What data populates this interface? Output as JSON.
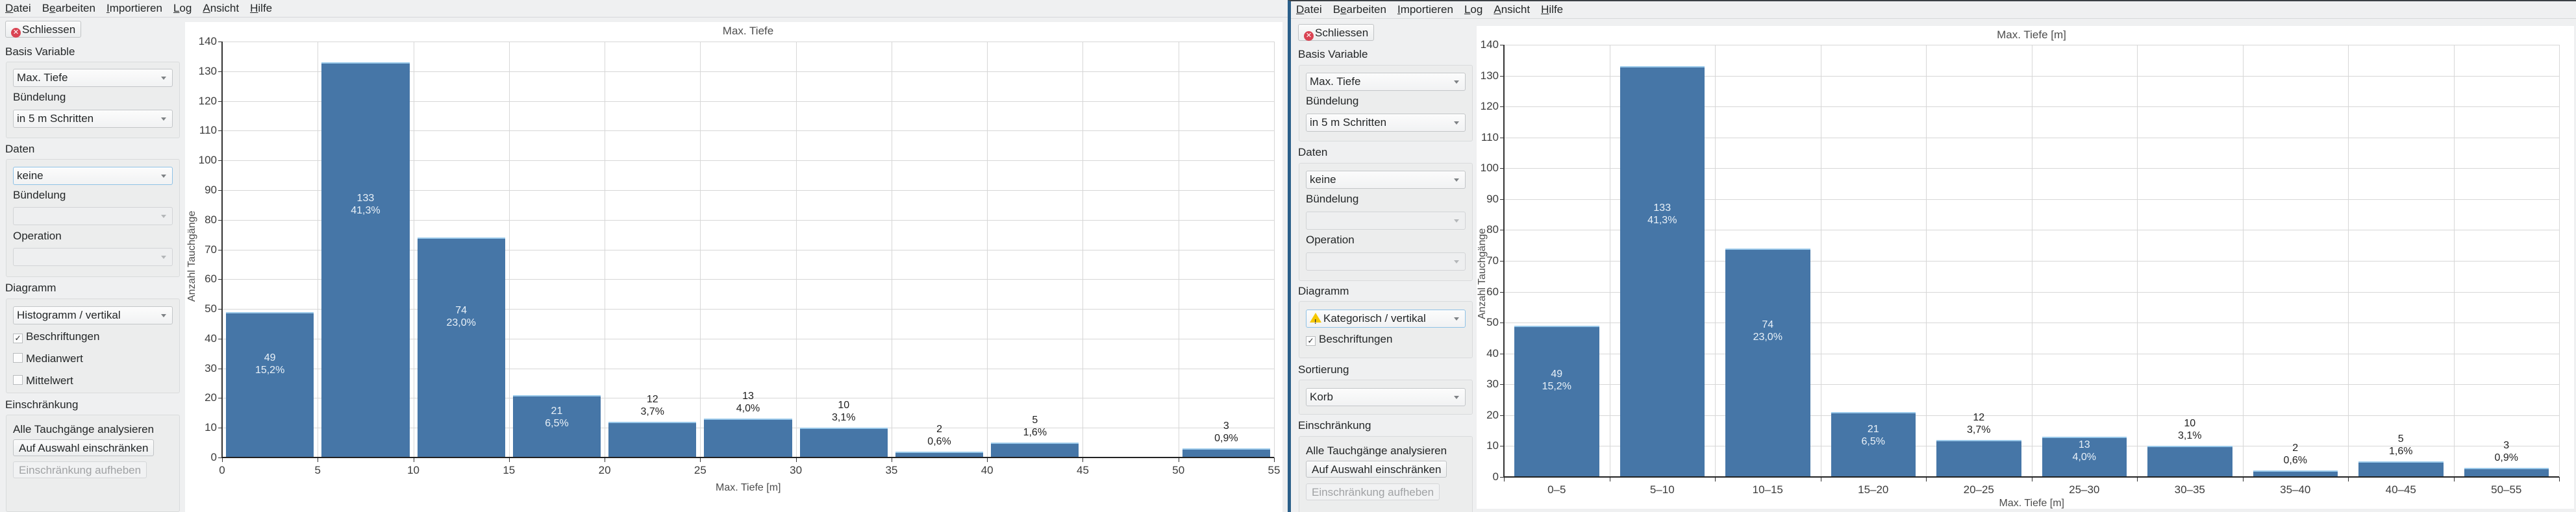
{
  "menu": [
    {
      "label": "Datei",
      "mnemonic": "D"
    },
    {
      "label": "Bearbeiten",
      "mnemonic": "e"
    },
    {
      "label": "Importieren",
      "mnemonic": "I"
    },
    {
      "label": "Log",
      "mnemonic": "L"
    },
    {
      "label": "Ansicht",
      "mnemonic": "A"
    },
    {
      "label": "Hilfe",
      "mnemonic": "H"
    }
  ],
  "left_window": {
    "close_button": "Schliessen",
    "basis": {
      "section": "Basis Variable",
      "variable": "Max. Tiefe",
      "binning_label": "Bündelung",
      "binning": "in 5 m Schritten"
    },
    "daten": {
      "section": "Daten",
      "variable": "keine",
      "binning_label": "Bündelung",
      "binning": "",
      "operation_label": "Operation",
      "operation": ""
    },
    "diagramm": {
      "section": "Diagramm",
      "type": "Histogramm / vertikal",
      "checkboxes": [
        {
          "label": "Beschriftungen",
          "checked": true
        },
        {
          "label": "Medianwert",
          "checked": false
        },
        {
          "label": "Mittelwert",
          "checked": false
        }
      ]
    },
    "einschraenkung": {
      "section": "Einschränkung",
      "status": "Alle Tauchgänge analysieren",
      "restrict_button": "Auf Auswahl einschränken",
      "clear_button": "Einschränkung aufheben"
    }
  },
  "right_window": {
    "close_button": "Schliessen",
    "basis": {
      "section": "Basis Variable",
      "variable": "Max. Tiefe",
      "binning_label": "Bündelung",
      "binning": "in 5 m Schritten"
    },
    "daten": {
      "section": "Daten",
      "variable": "keine",
      "binning_label": "Bündelung",
      "binning": "",
      "operation_label": "Operation",
      "operation": ""
    },
    "diagramm": {
      "section": "Diagramm",
      "type": "Kategorisch / vertikal",
      "warning_icon": "warning-icon",
      "checkboxes": [
        {
          "label": "Beschriftungen",
          "checked": true
        }
      ]
    },
    "sortierung": {
      "section": "Sortierung",
      "value": "Korb"
    },
    "einschraenkung": {
      "section": "Einschränkung",
      "status": "Alle Tauchgänge analysieren",
      "restrict_button": "Auf Auswahl einschränken",
      "clear_button": "Einschränkung aufheben"
    }
  },
  "colors": {
    "bar": "#4676a7",
    "bar_top": "#9ac9ea",
    "close_icon": "#da4453",
    "window_border": "#2b5f8a",
    "warning": "#f6c800"
  },
  "chart_data": [
    {
      "type": "bar",
      "title": "Max. Tiefe",
      "xlabel": "Max. Tiefe [m]",
      "ylabel": "Anzahl Tauchgänge",
      "xlim": [
        0,
        55
      ],
      "ylim": [
        0,
        140
      ],
      "xticks": [
        0,
        5,
        10,
        15,
        20,
        25,
        30,
        35,
        40,
        45,
        50,
        55
      ],
      "yticks": [
        0,
        10,
        20,
        30,
        40,
        50,
        60,
        70,
        80,
        90,
        100,
        110,
        120,
        130,
        140
      ],
      "grid": true,
      "bins": [
        {
          "from": 0,
          "to": 5,
          "value": 49,
          "pct": "15,2%"
        },
        {
          "from": 5,
          "to": 10,
          "value": 133,
          "pct": "41,3%"
        },
        {
          "from": 10,
          "to": 15,
          "value": 74,
          "pct": "23,0%"
        },
        {
          "from": 15,
          "to": 20,
          "value": 21,
          "pct": "6,5%"
        },
        {
          "from": 20,
          "to": 25,
          "value": 12,
          "pct": "3,7%"
        },
        {
          "from": 25,
          "to": 30,
          "value": 13,
          "pct": "4,0%"
        },
        {
          "from": 30,
          "to": 35,
          "value": 10,
          "pct": "3,1%"
        },
        {
          "from": 35,
          "to": 40,
          "value": 2,
          "pct": "0,6%"
        },
        {
          "from": 40,
          "to": 45,
          "value": 5,
          "pct": "1,6%"
        },
        {
          "from": 50,
          "to": 55,
          "value": 3,
          "pct": "0,9%"
        }
      ]
    },
    {
      "type": "bar",
      "title": "Max. Tiefe [m]",
      "xlabel": "Max. Tiefe [m]",
      "ylabel": "Anzahl Tauchgänge",
      "ylim": [
        0,
        140
      ],
      "yticks": [
        0,
        10,
        20,
        30,
        40,
        50,
        60,
        70,
        80,
        90,
        100,
        110,
        120,
        130,
        140
      ],
      "grid": true,
      "categories": [
        "0–5",
        "5–10",
        "10–15",
        "15–20",
        "20–25",
        "25–30",
        "30–35",
        "35–40",
        "40–45",
        "50–55"
      ],
      "values": [
        49,
        133,
        74,
        21,
        12,
        13,
        10,
        2,
        5,
        3
      ],
      "pcts": [
        "15,2%",
        "41,3%",
        "23,0%",
        "6,5%",
        "3,7%",
        "4,0%",
        "3,1%",
        "0,6%",
        "1,6%",
        "0,9%"
      ]
    }
  ]
}
